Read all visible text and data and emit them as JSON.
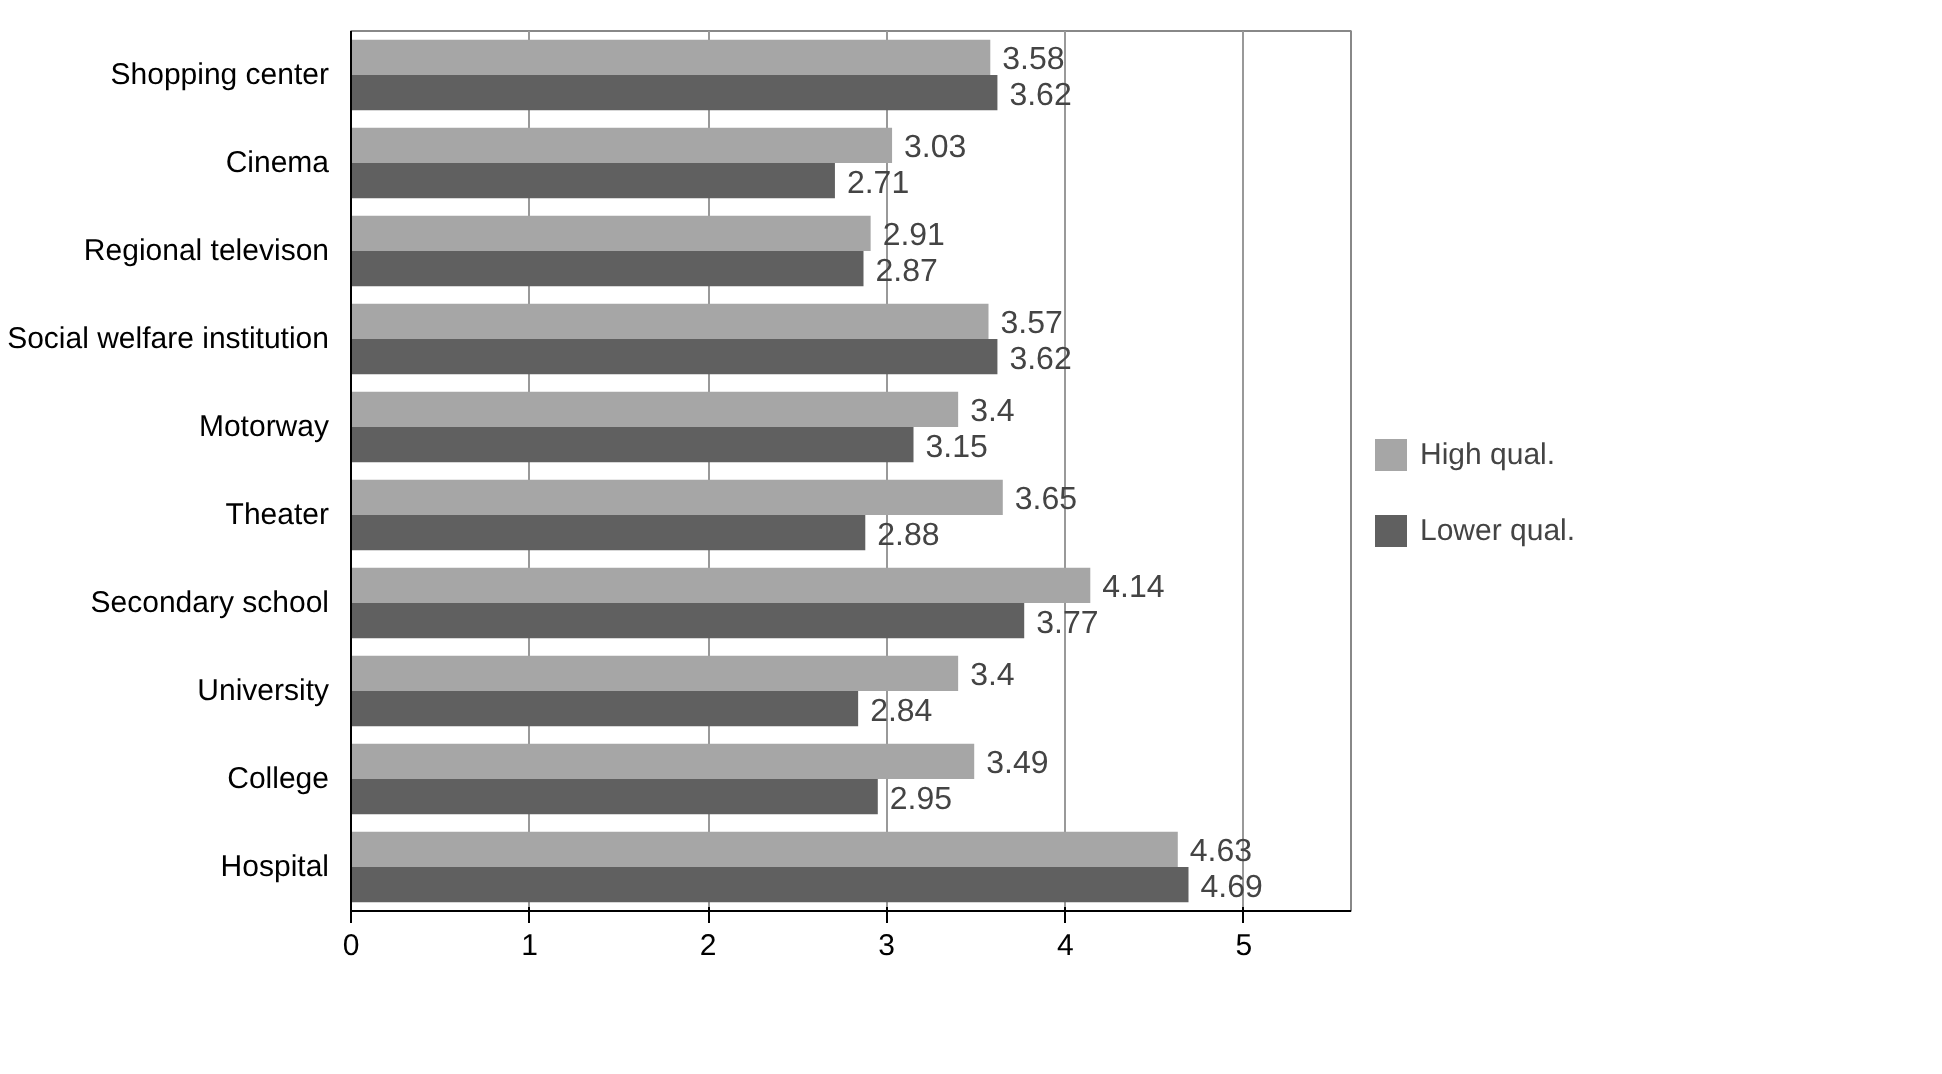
{
  "chart_data": {
    "type": "bar",
    "orientation": "horizontal",
    "categories": [
      "Shopping center",
      "Cinema",
      "Regional televison",
      "Social welfare institution",
      "Motorway",
      "Theater",
      "Secondary school",
      "University",
      "College",
      "Hospital"
    ],
    "series": [
      {
        "name": "High qual.",
        "color": "#a6a6a6",
        "values": [
          3.58,
          3.03,
          2.91,
          3.57,
          3.4,
          3.65,
          4.14,
          3.4,
          3.49,
          4.63
        ]
      },
      {
        "name": "Lower qual.",
        "color": "#606060",
        "values": [
          3.62,
          2.71,
          2.87,
          3.62,
          3.15,
          2.88,
          3.77,
          2.84,
          2.95,
          4.69
        ]
      }
    ],
    "xlim": [
      0,
      5.6
    ],
    "xticks": [
      0,
      1,
      2,
      3,
      4,
      5
    ],
    "grid": "x",
    "legend": "right",
    "data_labels": true
  }
}
